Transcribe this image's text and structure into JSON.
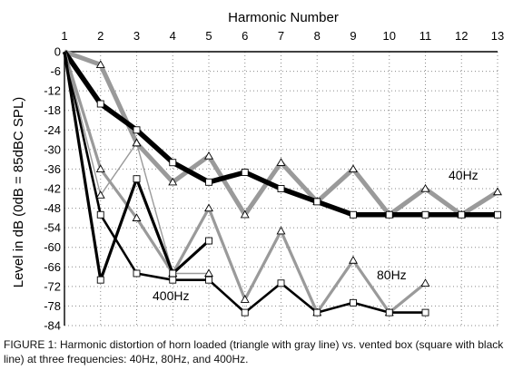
{
  "chart_data": {
    "type": "line",
    "xlabel": "Harmonic Number",
    "ylabel": "Level in dB (0dB = 85dBC SPL)",
    "x": [
      1,
      2,
      3,
      4,
      5,
      6,
      7,
      8,
      9,
      10,
      11,
      12,
      13
    ],
    "xlim": [
      1,
      13
    ],
    "ylim": [
      -84,
      0
    ],
    "yticks": [
      0,
      -6,
      -12,
      -18,
      -24,
      -30,
      -36,
      -42,
      -48,
      -54,
      -60,
      -66,
      -72,
      -78,
      -84
    ],
    "grid": true,
    "annotations": [
      "40Hz",
      "80Hz",
      "400Hz"
    ],
    "caption": "FIGURE 1: Harmonic distortion of horn loaded (triangle with gray line) vs. vented box (square with black line) at three frequencies: 40Hz, 80Hz, and 400Hz.",
    "colors": {
      "horn": "#9a9a9a",
      "box": "#000000",
      "grid": "#8a8a8a"
    },
    "series": [
      {
        "frequency": "40Hz",
        "marker": "triangle",
        "x": [
          1,
          2,
          3,
          4,
          5,
          6,
          7,
          8,
          9,
          10,
          11,
          12,
          13
        ],
        "values": [
          0,
          -4,
          -28,
          -40,
          -32,
          -50,
          -34,
          -46,
          -36,
          -50,
          -42,
          -50,
          -43
        ]
      },
      {
        "frequency": "40Hz",
        "marker": "square",
        "x": [
          1,
          2,
          3,
          4,
          5,
          6,
          7,
          8,
          9,
          10,
          11,
          12,
          13
        ],
        "values": [
          0,
          -16,
          -24,
          -34,
          -40,
          -37,
          -42,
          -46,
          -50,
          -50,
          -50,
          -50,
          -50
        ]
      },
      {
        "frequency": "80Hz",
        "marker": "triangle",
        "x": [
          1,
          2,
          3,
          4,
          5,
          6,
          7,
          8,
          9,
          10,
          11
        ],
        "values": [
          0,
          -36,
          -51,
          -68,
          -48,
          -76,
          -55,
          -80,
          -64,
          -80,
          -71
        ]
      },
      {
        "frequency": "80Hz",
        "marker": "square",
        "x": [
          1,
          2,
          3,
          4,
          5,
          6,
          7,
          8,
          9,
          10,
          11
        ],
        "values": [
          0,
          -50,
          -68,
          -70,
          -70,
          -80,
          -71,
          -80,
          -77,
          -80,
          -80
        ]
      },
      {
        "frequency": "400Hz",
        "marker": "triangle",
        "x": [
          1,
          2,
          3,
          4,
          5
        ],
        "values": [
          0,
          -44,
          -28,
          -68,
          -68
        ]
      },
      {
        "frequency": "400Hz",
        "marker": "square",
        "x": [
          1,
          2,
          3,
          4,
          5
        ],
        "values": [
          0,
          -70,
          -39,
          -68,
          -58
        ]
      }
    ]
  }
}
